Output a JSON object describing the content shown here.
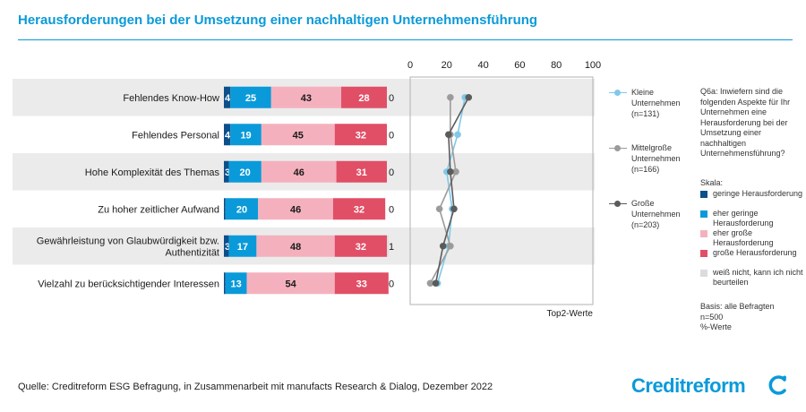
{
  "title": "Herausforderungen bei der Umsetzung einer nachhaltigen Unternehmensführung",
  "chart_data": [
    {
      "type": "bar",
      "orientation": "horizontal",
      "stacked": true,
      "categories": [
        [
          "Fehlendes Know-How"
        ],
        [
          "Fehlendes Personal"
        ],
        [
          "Hohe Komplexität des Themas"
        ],
        [
          "Zu hoher zeitlicher Aufwand"
        ],
        [
          "Gewährleistung von Glaubwürdigkeit bzw.",
          "Authentizität"
        ],
        [
          "Vielzahl zu berücksichtigender Interessen"
        ]
      ],
      "series": [
        {
          "name": "geringe Herausforderung",
          "color": "#0d4f8a",
          "values": [
            4,
            4,
            3,
            1,
            3,
            1
          ]
        },
        {
          "name": "eher geringe Herausforderung",
          "color": "#0a9ad9",
          "values": [
            25,
            19,
            20,
            20,
            17,
            13
          ]
        },
        {
          "name": "eher große Herausforderung",
          "color": "#f4b1bd",
          "values": [
            43,
            45,
            46,
            46,
            48,
            54
          ]
        },
        {
          "name": "große Herausforderung",
          "color": "#e04f66",
          "values": [
            28,
            32,
            31,
            32,
            32,
            33
          ]
        },
        {
          "name": "weiß nicht, kann ich nicht beurteilen",
          "color": "#dcdcdc",
          "values": [
            0,
            0,
            0,
            0,
            1,
            0
          ]
        }
      ],
      "xlim": [
        0,
        100
      ],
      "unit": "%-Werte"
    },
    {
      "type": "line",
      "xlabel": "Top2-Werte",
      "xlim": [
        0,
        100
      ],
      "xticks": [
        0,
        20,
        40,
        60,
        80,
        100
      ],
      "series": [
        {
          "name": [
            "Kleine",
            "Unternehmen",
            "(n=131)"
          ],
          "color": "#7fc9ea",
          "values": [
            30,
            26,
            20,
            23,
            21,
            15
          ]
        },
        {
          "name": [
            "Mittelgroße",
            "Unternehmen",
            "(n=166)"
          ],
          "color": "#9b9b9b",
          "values": [
            22,
            22,
            25,
            16,
            22,
            11
          ]
        },
        {
          "name": [
            "Große",
            "Unternehmen",
            "(n=203)"
          ],
          "color": "#5b5b5b",
          "values": [
            32,
            21,
            22,
            24,
            18,
            14
          ]
        }
      ]
    }
  ],
  "question": "Q6a: Inwiefern sind die folgenden Aspekte für Ihr Unternehmen eine Herausforderung bei der Umsetzung einer nachhaltigen Unternehmensführung?",
  "scale_title": "Skala:",
  "basis": [
    "Basis: alle Befragten",
    "n=500",
    "%-Werte"
  ],
  "source": "Quelle: Creditreform ESG Befragung, in Zusammenarbeit mit manufacts Research & Dialog, Dezember 2022",
  "logo": "Creditreform"
}
